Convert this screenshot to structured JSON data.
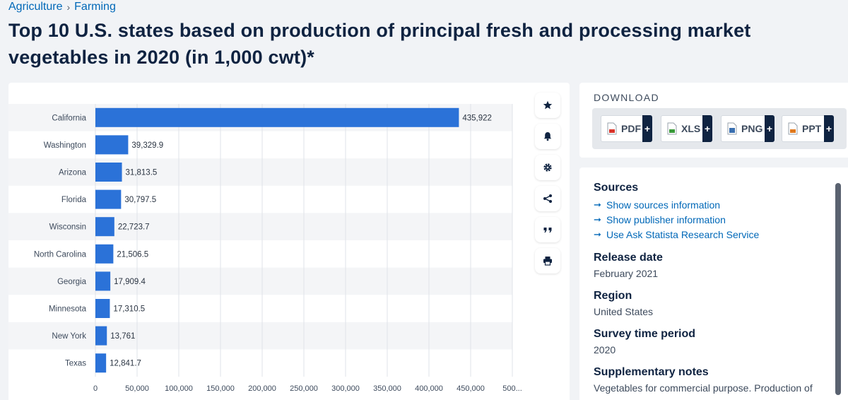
{
  "breadcrumb": {
    "items": [
      "Agriculture",
      "Farming"
    ],
    "separator": "›"
  },
  "page_title": "Top 10 U.S. states based on production of principal fresh and processing market vegetables in 2020 (in 1,000 cwt)*",
  "colors": {
    "bar": "#2b72d8",
    "stripe": "#f4f5f7",
    "grid": "#dfe3e8",
    "link": "#0068b8",
    "navy": "#0f2341"
  },
  "tools": [
    {
      "name": "favorite-button",
      "icon": "star-icon"
    },
    {
      "name": "notification-button",
      "icon": "bell-icon"
    },
    {
      "name": "settings-button",
      "icon": "gear-icon"
    },
    {
      "name": "share-button",
      "icon": "share-icon"
    },
    {
      "name": "cite-button",
      "icon": "quote-icon"
    },
    {
      "name": "print-button",
      "icon": "printer-icon"
    }
  ],
  "download": {
    "title": "DOWNLOAD",
    "buttons": [
      {
        "label": "PDF",
        "icon": "pdf-file-icon",
        "color": "#d9342b",
        "plus": "+"
      },
      {
        "label": "XLS",
        "icon": "xls-file-icon",
        "color": "#3a9a3a",
        "plus": "+"
      },
      {
        "label": "PNG",
        "icon": "png-file-icon",
        "color": "#3a6fb0",
        "plus": "+"
      },
      {
        "label": "PPT",
        "icon": "ppt-file-icon",
        "color": "#e07a1f",
        "plus": "+"
      }
    ]
  },
  "info": {
    "sources_heading": "Sources",
    "source_links": [
      "Show sources information",
      "Show publisher information",
      "Use Ask Statista Research Service"
    ],
    "release_heading": "Release date",
    "release_value": "February 2021",
    "region_heading": "Region",
    "region_value": "United States",
    "survey_heading": "Survey time period",
    "survey_value": "2020",
    "notes_heading": "Supplementary notes",
    "notes_value": "Vegetables for commercial purpose. Production of"
  },
  "chart_data": {
    "type": "bar",
    "orientation": "horizontal",
    "categories": [
      "California",
      "Washington",
      "Arizona",
      "Florida",
      "Wisconsin",
      "North Carolina",
      "Georgia",
      "Minnesota",
      "New York",
      "Texas"
    ],
    "values": [
      435922,
      39329.9,
      31813.5,
      30797.5,
      22723.7,
      21506.5,
      17909.4,
      17310.5,
      13761,
      12841.7
    ],
    "value_labels": [
      "435,922",
      "39,329.9",
      "31,813.5",
      "30,797.5",
      "22,723.7",
      "21,506.5",
      "17,909.4",
      "17,310.5",
      "13,761",
      "12,841.7"
    ],
    "x_ticks": [
      "0",
      "50,000",
      "100,000",
      "150,000",
      "200,000",
      "250,000",
      "300,000",
      "350,000",
      "400,000",
      "450,000",
      "500..."
    ],
    "x_tick_values": [
      0,
      50000,
      100000,
      150000,
      200000,
      250000,
      300000,
      350000,
      400000,
      450000,
      500000
    ],
    "xlim": [
      0,
      500000
    ],
    "grid": true
  }
}
